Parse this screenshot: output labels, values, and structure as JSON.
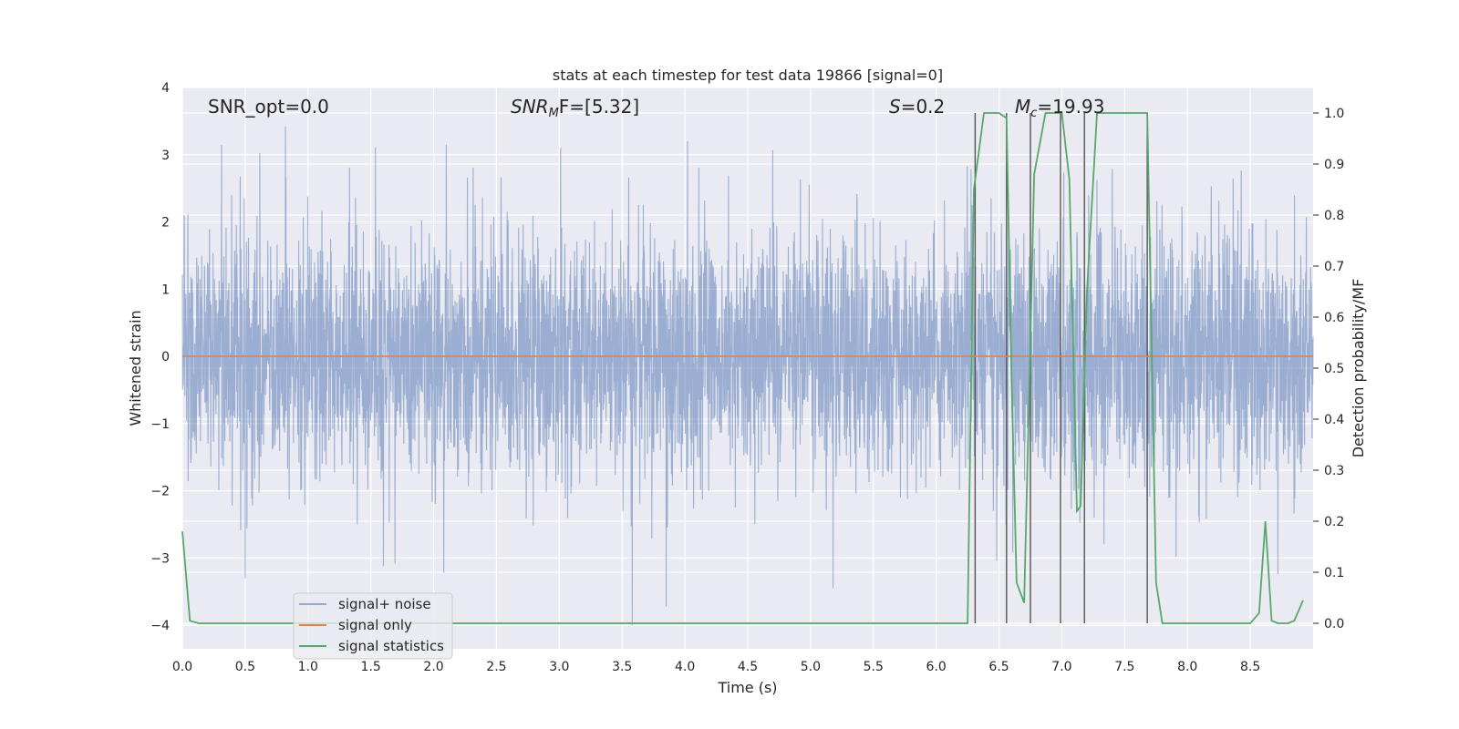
{
  "chart_data": {
    "type": "line",
    "title": "stats at each timestep for test data 19866 [signal=0]",
    "xlabel": "Time (s)",
    "ylabel_left": "Whitened strain",
    "ylabel_right": "Detection probability/MF",
    "xlim": [
      0.0,
      9.0
    ],
    "ylim_left": [
      -4.35,
      4.0
    ],
    "ylim_right": [
      -0.05,
      1.05
    ],
    "xticks": [
      "0.0",
      "0.5",
      "1.0",
      "1.5",
      "2.0",
      "2.5",
      "3.0",
      "3.5",
      "4.0",
      "4.5",
      "5.0",
      "5.5",
      "6.0",
      "6.5",
      "7.0",
      "7.5",
      "8.0",
      "8.5"
    ],
    "yticks_left": [
      "−4",
      "−3",
      "−2",
      "−1",
      "0",
      "1",
      "2",
      "3",
      "4"
    ],
    "yticks_right": [
      "0.0",
      "0.1",
      "0.2",
      "0.3",
      "0.4",
      "0.5",
      "0.6",
      "0.7",
      "0.8",
      "0.9",
      "1.0"
    ],
    "grid": true,
    "legend_position": "lower-left",
    "annotations": {
      "snr_opt": "SNR_opt=0.0",
      "snr_mf": "SNR",
      "snr_mf_sub": "M",
      "snr_mf_rest": "F=[5.32]",
      "s_label": "S",
      "s_value": "=0.2",
      "mc_label": "M",
      "mc_sub": "c",
      "mc_value": "=19.93"
    },
    "series": [
      {
        "name": "signal+ noise",
        "color": "#4c72b0",
        "axis": "left",
        "note_amplitude_range": [
          -4.0,
          3.45
        ]
      },
      {
        "name": "signal only",
        "color": "#dd8452",
        "axis": "left",
        "values_constant": 0.0
      },
      {
        "name": "signal statistics",
        "color": "#55a868",
        "axis": "right",
        "x": [
          0.0,
          0.06,
          0.13,
          0.5,
          1.0,
          2.0,
          3.0,
          4.0,
          5.0,
          6.0,
          6.25,
          6.3,
          6.38,
          6.5,
          6.56,
          6.6,
          6.64,
          6.7,
          6.74,
          6.78,
          6.87,
          7.0,
          7.06,
          7.12,
          7.15,
          7.2,
          7.28,
          7.5,
          7.68,
          7.75,
          7.8,
          8.0,
          8.5,
          8.57,
          8.62,
          8.67,
          8.72,
          8.8,
          8.85,
          8.92
        ],
        "y": [
          0.18,
          0.005,
          0.0,
          0.0,
          0.0,
          0.0,
          0.0,
          0.0,
          0.0,
          0.0,
          0.0,
          0.85,
          1.0,
          1.0,
          0.99,
          0.48,
          0.08,
          0.04,
          0.45,
          0.88,
          1.0,
          1.0,
          0.87,
          0.22,
          0.23,
          0.65,
          1.0,
          1.0,
          1.0,
          0.08,
          0.0,
          0.0,
          0.0,
          0.02,
          0.2,
          0.005,
          0.0,
          0.0,
          0.005,
          0.045
        ]
      }
    ],
    "vertical_lines_x": [
      6.31,
      6.56,
      6.75,
      6.99,
      7.18,
      7.68
    ],
    "spike_points": [
      {
        "x": 0.82,
        "y": 3.42
      },
      {
        "x": 3.58,
        "y": -4.0
      },
      {
        "x": 3.85,
        "y": -3.72
      },
      {
        "x": 0.5,
        "y": -3.3
      },
      {
        "x": 1.6,
        "y": -3.12
      },
      {
        "x": 2.08,
        "y": -3.22
      },
      {
        "x": 5.18,
        "y": -3.45
      },
      {
        "x": 4.02,
        "y": 3.2
      },
      {
        "x": 2.1,
        "y": 3.15
      },
      {
        "x": 3.01,
        "y": 3.1
      }
    ]
  }
}
